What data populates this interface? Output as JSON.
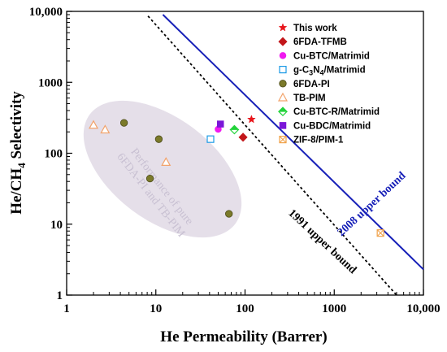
{
  "chart_data": {
    "type": "scatter",
    "xlabel": "He Permeability (Barrer)",
    "ylabel_main": "He/CH",
    "ylabel_sub": "4",
    "ylabel_rest": " Selectivity",
    "x_scale": "log",
    "y_scale": "log",
    "xlim": [
      1,
      10000
    ],
    "ylim": [
      1,
      10000
    ],
    "x_ticks": [
      1,
      10,
      100,
      1000,
      10000
    ],
    "x_tick_labels": [
      "1",
      "10",
      "100",
      "1000",
      "10,000"
    ],
    "y_ticks": [
      1,
      10,
      100,
      1000,
      10000
    ],
    "y_tick_labels": [
      "1",
      "10",
      "100",
      "1000",
      "10,000"
    ],
    "grid": false,
    "legend_placement": "top-right",
    "series": [
      {
        "name": "This work",
        "marker": "star",
        "color": "#e8151b",
        "filled": true,
        "points": [
          [
            118,
            300
          ]
        ]
      },
      {
        "name": "6FDA-TFMB",
        "marker": "diamond",
        "color": "#c2161a",
        "filled": true,
        "points": [
          [
            95,
            168
          ]
        ]
      },
      {
        "name": "Cu-BTC/Matrimid",
        "marker": "circle",
        "color": "#f019f0",
        "filled": true,
        "points": [
          [
            50,
            218
          ]
        ]
      },
      {
        "name_parts": [
          "g-C",
          "3",
          "N",
          "4",
          "/Matrimid"
        ],
        "marker": "square",
        "color": "#1a9ae6",
        "filled": false,
        "points": [
          [
            41,
            158
          ]
        ]
      },
      {
        "name": "6FDA-PI",
        "marker": "circle",
        "color": "#7b7a2a",
        "filled": true,
        "points": [
          [
            4.4,
            268
          ],
          [
            10.8,
            158
          ],
          [
            8.6,
            44
          ],
          [
            66,
            14
          ]
        ]
      },
      {
        "name": "TB-PIM",
        "marker": "triangle",
        "color": "#f2a36b",
        "filled": false,
        "points": [
          [
            2.0,
            250
          ],
          [
            2.7,
            215
          ],
          [
            13,
            75
          ]
        ]
      },
      {
        "name": "Cu-BTC-R/Matrimid",
        "marker": "half-diamond",
        "color": "#22d33a",
        "filled": true,
        "points": [
          [
            76,
            215
          ]
        ]
      },
      {
        "name": "Cu-BDC/Matrimid",
        "marker": "square",
        "color": "#7a16d8",
        "filled": true,
        "points": [
          [
            53,
            258
          ]
        ]
      },
      {
        "name": "ZIF-8/PIM-1",
        "marker": "square-x",
        "color": "#f0a24a",
        "filled": false,
        "points": [
          [
            3300,
            7.5
          ]
        ]
      }
    ],
    "bounds": [
      {
        "label": "1991 upper bound",
        "style": "dotted",
        "color": "#000000",
        "points": [
          [
            8.17,
            8600
          ],
          [
            5000,
            1
          ]
        ]
      },
      {
        "label": "2008 upper bound",
        "style": "solid",
        "color": "#1720b8",
        "points": [
          [
            12.0,
            9000
          ],
          [
            10000,
            2.3
          ]
        ]
      }
    ],
    "region": {
      "lines": [
        "Performance of pure",
        "6FDA-PI and TB-PIM"
      ],
      "color": "#e5dfe9"
    }
  }
}
